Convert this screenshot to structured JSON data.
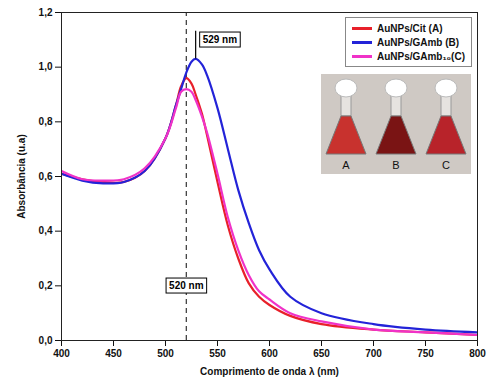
{
  "chart_data": {
    "type": "line",
    "xlabel": "Comprimento de onda λ (nm)",
    "ylabel": "Absorbância (u.a)",
    "x": [
      400,
      420,
      440,
      460,
      480,
      500,
      510,
      515,
      520,
      525,
      529,
      535,
      540,
      550,
      560,
      570,
      580,
      590,
      600,
      620,
      650,
      700,
      750,
      800
    ],
    "series": [
      {
        "name": "AuNPs/Cit (A)",
        "color": "#e8202a",
        "values": [
          0.61,
          0.59,
          0.58,
          0.58,
          0.62,
          0.74,
          0.86,
          0.93,
          0.96,
          0.94,
          0.9,
          0.83,
          0.75,
          0.58,
          0.42,
          0.3,
          0.21,
          0.16,
          0.13,
          0.09,
          0.06,
          0.04,
          0.03,
          0.02
        ]
      },
      {
        "name": "AuNPs/GAmb (B)",
        "color": "#2323d8",
        "values": [
          0.61,
          0.585,
          0.575,
          0.58,
          0.62,
          0.74,
          0.86,
          0.92,
          0.98,
          1.02,
          1.03,
          1.01,
          0.97,
          0.85,
          0.7,
          0.55,
          0.43,
          0.33,
          0.26,
          0.16,
          0.1,
          0.06,
          0.04,
          0.03
        ]
      },
      {
        "name": "AuNPs/GAmb₁₀(C)",
        "color": "#f032c8",
        "values": [
          0.62,
          0.59,
          0.585,
          0.59,
          0.63,
          0.74,
          0.85,
          0.91,
          0.92,
          0.91,
          0.88,
          0.82,
          0.76,
          0.61,
          0.45,
          0.33,
          0.24,
          0.18,
          0.15,
          0.1,
          0.07,
          0.04,
          0.03,
          0.02
        ]
      }
    ],
    "xlim": [
      400,
      800
    ],
    "xticks": [
      400,
      450,
      500,
      550,
      600,
      650,
      700,
      750,
      800
    ],
    "ylim": [
      0,
      1.2
    ],
    "yticks": [
      {
        "value": 0,
        "label": "0,0"
      },
      {
        "value": 0.2,
        "label": "0,2"
      },
      {
        "value": 0.4,
        "label": "0,4"
      },
      {
        "value": 0.6,
        "label": "0,6"
      },
      {
        "value": 0.8,
        "label": "0,8"
      },
      {
        "value": 1.0,
        "label": "1,0"
      },
      {
        "value": 1.2,
        "label": "1,2"
      }
    ],
    "vlines": [
      {
        "x": 520,
        "line_style": "dashed"
      }
    ],
    "annotations": [
      {
        "text": "529 nm",
        "x": 529,
        "y": 1.1
      },
      {
        "text": "520 nm",
        "x": 520,
        "y": 0.2
      }
    ],
    "inset_labels": [
      "A",
      "B",
      "C"
    ],
    "legend": "upper right",
    "grid": false
  }
}
